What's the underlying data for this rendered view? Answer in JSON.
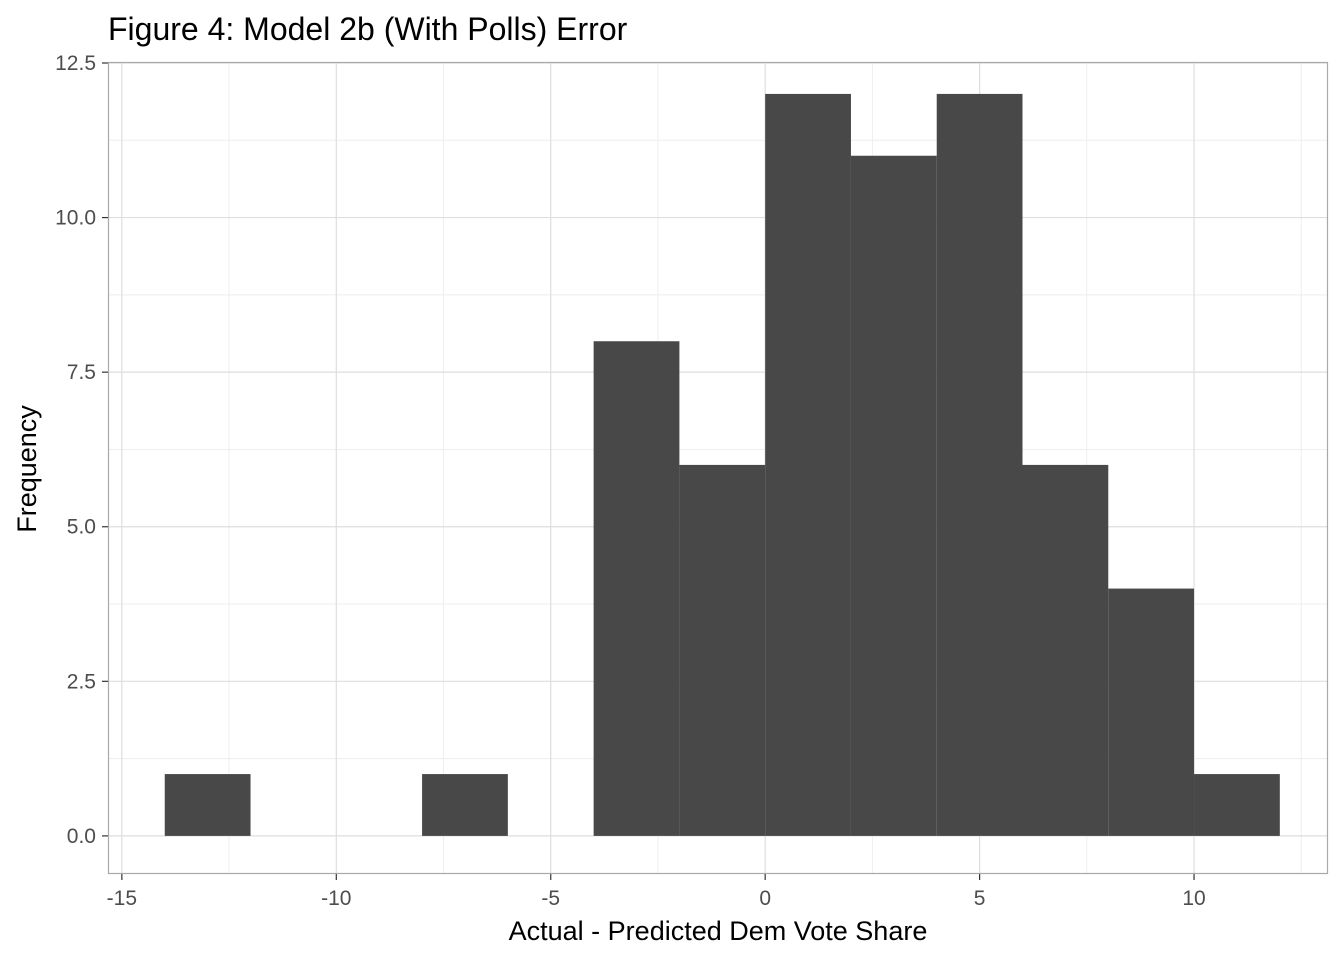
{
  "chart_data": {
    "type": "bar",
    "title": "Figure 4: Model 2b (With Polls) Error",
    "xlabel": "Actual - Predicted Dem Vote Share",
    "ylabel": "Frequency",
    "xlim": [
      -15.3,
      13.1
    ],
    "ylim": [
      -0.6,
      12.5
    ],
    "bin_width": 2,
    "bins": [
      {
        "x0": -14,
        "x1": -12,
        "count": 1
      },
      {
        "x0": -8,
        "x1": -6,
        "count": 1
      },
      {
        "x0": -4,
        "x1": -2,
        "count": 8
      },
      {
        "x0": -2,
        "x1": 0,
        "count": 6
      },
      {
        "x0": 0,
        "x1": 2,
        "count": 12
      },
      {
        "x0": 2,
        "x1": 4,
        "count": 11
      },
      {
        "x0": 4,
        "x1": 6,
        "count": 12
      },
      {
        "x0": 6,
        "x1": 8,
        "count": 6
      },
      {
        "x0": 8,
        "x1": 10,
        "count": 4
      },
      {
        "x0": 10,
        "x1": 12,
        "count": 1
      }
    ],
    "x_ticks": [
      {
        "value": -15,
        "label": "-15"
      },
      {
        "value": -10,
        "label": "-10"
      },
      {
        "value": -5,
        "label": "-5"
      },
      {
        "value": 0,
        "label": "0"
      },
      {
        "value": 5,
        "label": "5"
      },
      {
        "value": 10,
        "label": "10"
      }
    ],
    "y_ticks": [
      {
        "value": 0,
        "label": "0.0"
      },
      {
        "value": 2.5,
        "label": "2.5"
      },
      {
        "value": 5,
        "label": "5.0"
      },
      {
        "value": 7.5,
        "label": "7.5"
      },
      {
        "value": 10,
        "label": "10.0"
      },
      {
        "value": 12.5,
        "label": "12.5"
      }
    ],
    "x_minor_ticks": [
      -12.5,
      -7.5,
      -2.5,
      2.5,
      7.5,
      12.5
    ],
    "y_minor_ticks": [
      1.25,
      3.75,
      6.25,
      8.75,
      11.25
    ],
    "grid": true,
    "legend": "none",
    "colors": {
      "bar_fill": "#484848",
      "panel_border": "#a9a9a9",
      "grid_major": "#dedede",
      "grid_minor": "#eeeeee",
      "tick_text": "#4d4d4d",
      "title_text": "#000000"
    }
  }
}
